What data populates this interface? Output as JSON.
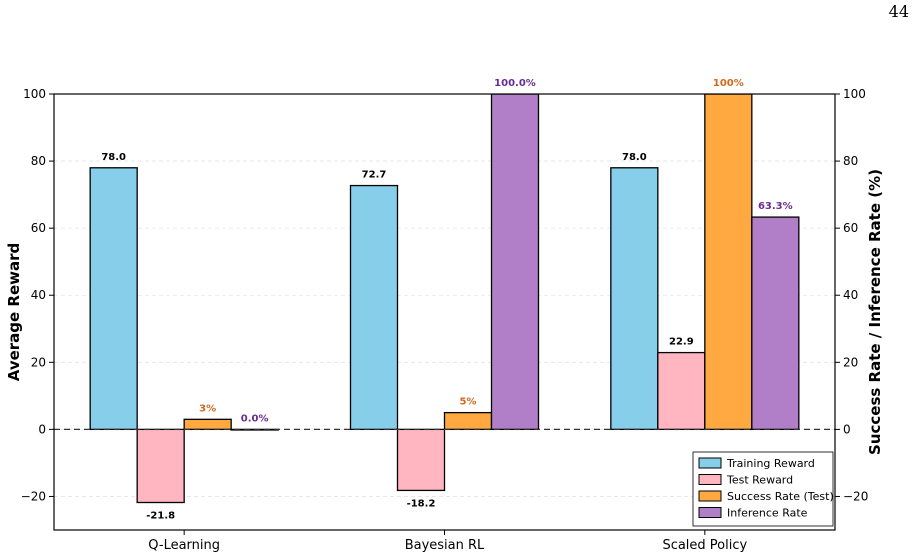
{
  "page_number": "44",
  "chart_data": {
    "type": "bar",
    "categories": [
      "Q-Learning",
      "Bayesian RL",
      "Scaled Policy"
    ],
    "ylabel": "Average Reward",
    "ylabel_right": "Success Rate / Inference Rate (%)",
    "ylim": [
      -30,
      100
    ],
    "ylim_right": [
      -30,
      100
    ],
    "yticks": [
      -20,
      0,
      20,
      40,
      60,
      80,
      100
    ],
    "yticks_right": [
      -20,
      0,
      20,
      40,
      60,
      80,
      100
    ],
    "zero_line": "dashed",
    "grid": "horizontal dashed",
    "legend_position": "lower-right",
    "series": [
      {
        "name": "Training Reward",
        "axis": "left",
        "color": "#87CEEB",
        "values": [
          78.0,
          72.7,
          78.0
        ],
        "labels": [
          "78.0",
          "72.7",
          "78.0"
        ]
      },
      {
        "name": "Test Reward",
        "axis": "left",
        "color": "#FFB6C1",
        "values": [
          -21.8,
          -18.2,
          22.9
        ],
        "labels": [
          "-21.8",
          "-18.2",
          "22.9"
        ]
      },
      {
        "name": "Success Rate (Test)",
        "axis": "right",
        "color": "#FFA940",
        "label_color": "#D2691E",
        "values": [
          3,
          5,
          100
        ],
        "labels": [
          "3%",
          "5%",
          "100%"
        ]
      },
      {
        "name": "Inference Rate",
        "axis": "right",
        "color": "#B07FC7",
        "label_color": "#6A2C91",
        "values": [
          0.0,
          100.0,
          63.3
        ],
        "labels": [
          "0.0%",
          "100.0%",
          "63.3%"
        ]
      }
    ]
  }
}
